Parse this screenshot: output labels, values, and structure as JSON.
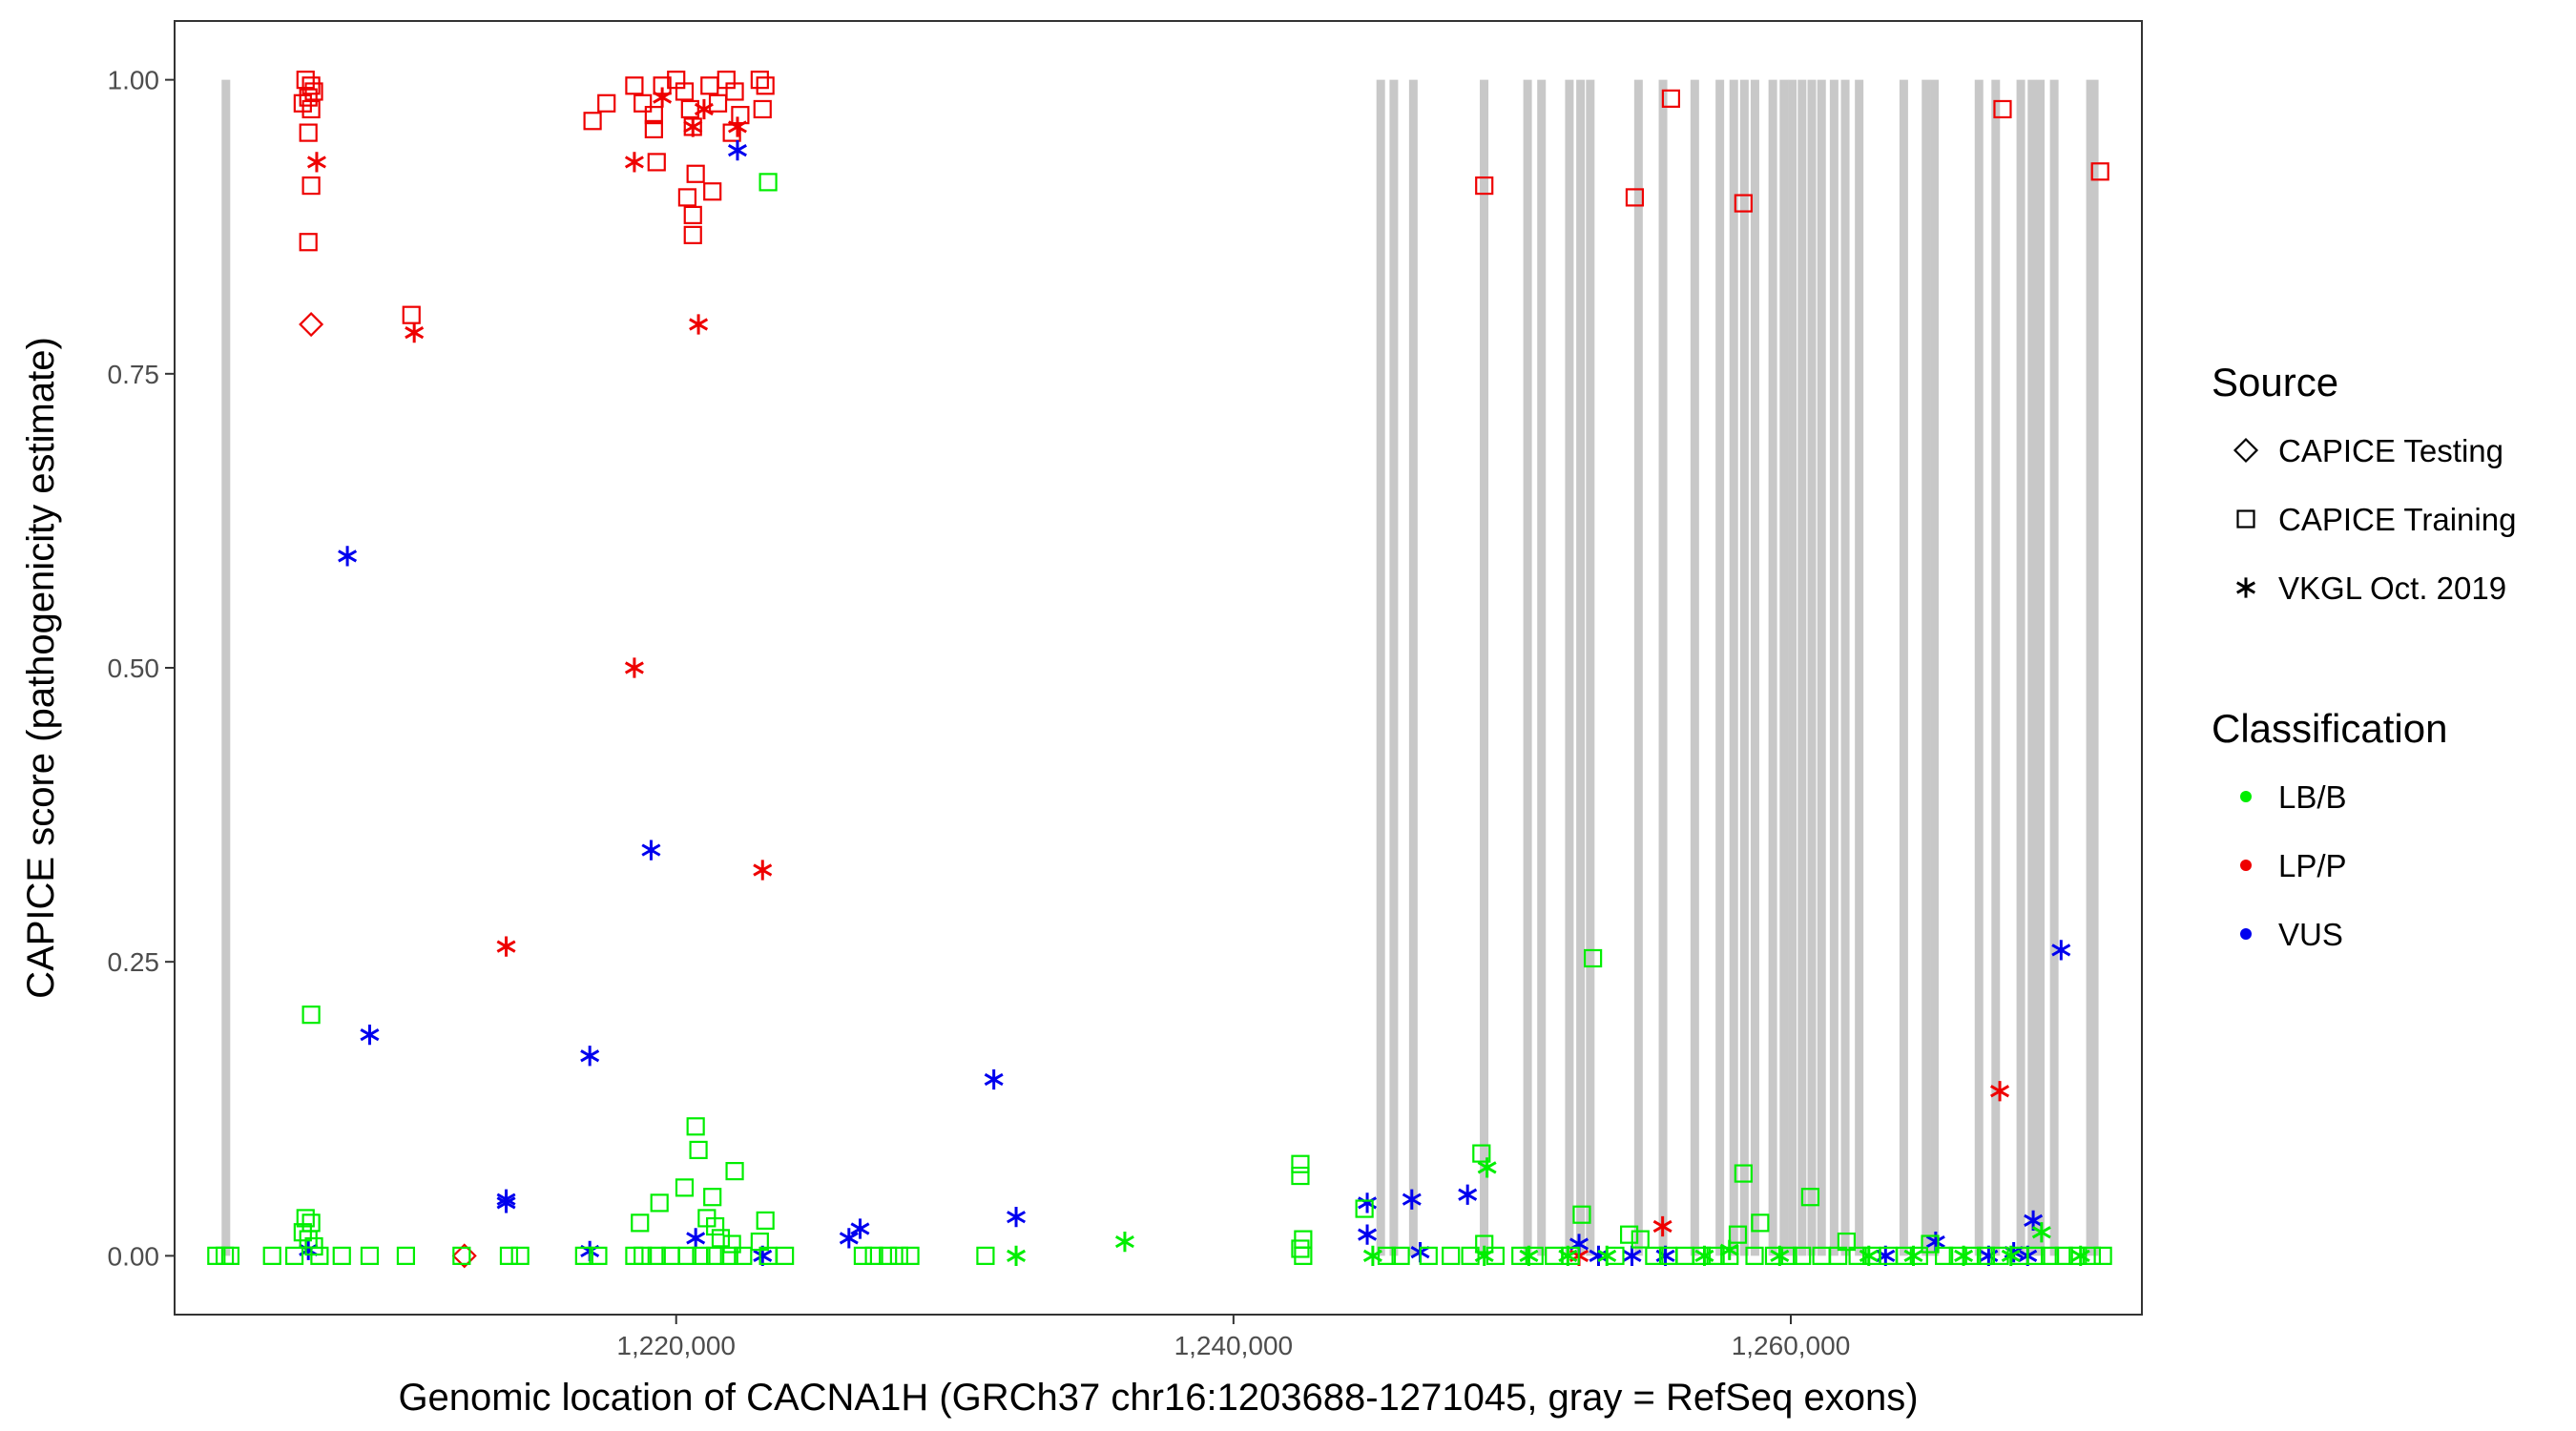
{
  "chart_data": {
    "type": "scatter",
    "xlabel": "Genomic location of CACNA1H (GRCh37 chr16:1203688-1271045, gray = RefSeq exons)",
    "ylabel": "CAPICE score (pathogenicity estimate)",
    "xlim": [
      1202000,
      1272600
    ],
    "ylim": [
      -0.05,
      1.05
    ],
    "x_ticks": [
      1220000,
      1240000,
      1260000
    ],
    "x_tick_labels": [
      "1,220,000",
      "1,240,000",
      "1,260,000"
    ],
    "y_ticks": [
      0,
      0.25,
      0.5,
      0.75,
      1.0
    ],
    "y_tick_labels": [
      "0.00",
      "0.25",
      "0.50",
      "0.75",
      "1.00"
    ],
    "grid": false,
    "legend_position": "right",
    "colors": {
      "LB/B": "#00ee00",
      "LP/P": "#ee0000",
      "VUS": "#0000ee",
      "exon": "#c8c8c8"
    },
    "exons": [
      [
        1203688,
        1203880
      ],
      [
        1245130,
        1245260
      ],
      [
        1245600,
        1245740
      ],
      [
        1246300,
        1246420
      ],
      [
        1248840,
        1248980
      ],
      [
        1250400,
        1250600
      ],
      [
        1250900,
        1251040
      ],
      [
        1251900,
        1252100
      ],
      [
        1252300,
        1252460
      ],
      [
        1252650,
        1252820
      ],
      [
        1254380,
        1254600
      ],
      [
        1255260,
        1255420
      ],
      [
        1256400,
        1256560
      ],
      [
        1257300,
        1257460
      ],
      [
        1257800,
        1257940
      ],
      [
        1258180,
        1258320
      ],
      [
        1258560,
        1258700
      ],
      [
        1259200,
        1259360
      ],
      [
        1259600,
        1259740
      ],
      [
        1259900,
        1260050
      ],
      [
        1260250,
        1260400
      ],
      [
        1260600,
        1260760
      ],
      [
        1260950,
        1261100
      ],
      [
        1261400,
        1261540
      ],
      [
        1261800,
        1261940
      ],
      [
        1262300,
        1262440
      ],
      [
        1263900,
        1264060
      ],
      [
        1264700,
        1264860
      ],
      [
        1265000,
        1265140
      ],
      [
        1266600,
        1266740
      ],
      [
        1267200,
        1267360
      ],
      [
        1268100,
        1268260
      ],
      [
        1268500,
        1268660
      ],
      [
        1268800,
        1268960
      ],
      [
        1269300,
        1269440
      ],
      [
        1270600,
        1271045
      ]
    ],
    "legends": [
      {
        "title": "Source",
        "items": [
          {
            "label": "CAPICE Testing",
            "shape": "diamond"
          },
          {
            "label": "CAPICE Training",
            "shape": "square"
          },
          {
            "label": "VKGL Oct. 2019",
            "shape": "star"
          }
        ]
      },
      {
        "title": "Classification",
        "items": [
          {
            "label": "LB/B",
            "color": "#00ee00"
          },
          {
            "label": "LP/P",
            "color": "#ee0000"
          },
          {
            "label": "VUS",
            "color": "#0000ee"
          }
        ]
      }
    ],
    "series": [
      {
        "name": "LP/P - CAPICE Training",
        "class": "LP/P",
        "source": "CAPICE Training",
        "points": [
          [
            1206700,
            1.0
          ],
          [
            1206900,
            0.995
          ],
          [
            1207000,
            0.99
          ],
          [
            1206800,
            0.985
          ],
          [
            1206600,
            0.98
          ],
          [
            1206900,
            0.975
          ],
          [
            1206800,
            0.955
          ],
          [
            1206900,
            0.91
          ],
          [
            1206800,
            0.862
          ],
          [
            1210500,
            0.8
          ],
          [
            1217000,
            0.965
          ],
          [
            1217500,
            0.98
          ],
          [
            1218500,
            0.995
          ],
          [
            1218800,
            0.98
          ],
          [
            1219200,
            0.97
          ],
          [
            1219500,
            0.995
          ],
          [
            1219200,
            0.958
          ],
          [
            1219300,
            0.93
          ],
          [
            1220000,
            1.0
          ],
          [
            1220300,
            0.99
          ],
          [
            1220500,
            0.975
          ],
          [
            1220600,
            0.96
          ],
          [
            1220400,
            0.9
          ],
          [
            1220600,
            0.885
          ],
          [
            1220700,
            0.92
          ],
          [
            1220600,
            0.868
          ],
          [
            1221200,
            0.995
          ],
          [
            1221500,
            0.98
          ],
          [
            1221800,
            1.0
          ],
          [
            1222100,
            0.99
          ],
          [
            1222300,
            0.97
          ],
          [
            1222000,
            0.955
          ],
          [
            1221300,
            0.905
          ],
          [
            1223000,
            1.0
          ],
          [
            1223200,
            0.995
          ],
          [
            1223100,
            0.975
          ],
          [
            1249000,
            0.91
          ],
          [
            1254400,
            0.9
          ],
          [
            1255700,
            0.984
          ],
          [
            1258300,
            0.895
          ],
          [
            1267600,
            0.975
          ],
          [
            1271100,
            0.922
          ]
        ]
      },
      {
        "name": "LP/P - VKGL Oct. 2019",
        "class": "LP/P",
        "source": "VKGL Oct. 2019",
        "points": [
          [
            1207100,
            0.93
          ],
          [
            1210600,
            0.785
          ],
          [
            1213900,
            0.263
          ],
          [
            1218500,
            0.93
          ],
          [
            1218500,
            0.5
          ],
          [
            1219500,
            0.985
          ],
          [
            1220600,
            0.96
          ],
          [
            1220800,
            0.792
          ],
          [
            1221000,
            0.975
          ],
          [
            1222200,
            0.96
          ],
          [
            1223100,
            0.328
          ],
          [
            1252400,
            0.0
          ],
          [
            1255400,
            0.025
          ],
          [
            1267500,
            0.14
          ]
        ]
      },
      {
        "name": "LP/P - CAPICE Testing",
        "class": "LP/P",
        "source": "CAPICE Testing",
        "points": [
          [
            1206900,
            0.792
          ],
          [
            1212400,
            0.0
          ]
        ]
      },
      {
        "name": "VUS - VKGL Oct. 2019",
        "class": "VUS",
        "source": "VKGL Oct. 2019",
        "points": [
          [
            1208200,
            0.595
          ],
          [
            1209000,
            0.188
          ],
          [
            1206800,
            0.005
          ],
          [
            1213900,
            0.048
          ],
          [
            1213900,
            0.045
          ],
          [
            1216900,
            0.17
          ],
          [
            1216900,
            0.004
          ],
          [
            1219100,
            0.345
          ],
          [
            1222200,
            0.94
          ],
          [
            1220700,
            0.015
          ],
          [
            1223100,
            0.0
          ],
          [
            1226200,
            0.015
          ],
          [
            1226600,
            0.023
          ],
          [
            1231400,
            0.15
          ],
          [
            1232200,
            0.033
          ],
          [
            1244800,
            0.045
          ],
          [
            1244800,
            0.018
          ],
          [
            1246400,
            0.048
          ],
          [
            1246700,
            0.003
          ],
          [
            1248400,
            0.052
          ],
          [
            1252400,
            0.01
          ],
          [
            1253100,
            0.0
          ],
          [
            1254300,
            0.0
          ],
          [
            1255500,
            0.0
          ],
          [
            1263400,
            0.0
          ],
          [
            1265200,
            0.012
          ],
          [
            1267100,
            0.0
          ],
          [
            1268000,
            0.003
          ],
          [
            1268500,
            0.0
          ],
          [
            1268700,
            0.03
          ],
          [
            1269700,
            0.26
          ]
        ]
      },
      {
        "name": "LB/B - CAPICE Training",
        "class": "LB/B",
        "source": "CAPICE Training",
        "points": [
          [
            1203500,
            0.0
          ],
          [
            1203800,
            0.0
          ],
          [
            1204000,
            0.0
          ],
          [
            1206900,
            0.205
          ],
          [
            1206700,
            0.032
          ],
          [
            1206900,
            0.028
          ],
          [
            1206600,
            0.02
          ],
          [
            1206800,
            0.014
          ],
          [
            1207000,
            0.008
          ],
          [
            1205500,
            0.0
          ],
          [
            1206300,
            0.0
          ],
          [
            1207200,
            0.0
          ],
          [
            1208000,
            0.0
          ],
          [
            1209000,
            0.0
          ],
          [
            1210300,
            0.0
          ],
          [
            1212300,
            0.0
          ],
          [
            1214000,
            0.0
          ],
          [
            1214400,
            0.0
          ],
          [
            1216700,
            0.0
          ],
          [
            1217200,
            0.0
          ],
          [
            1218500,
            0.0
          ],
          [
            1218800,
            0.0
          ],
          [
            1219300,
            0.0
          ],
          [
            1219800,
            0.0
          ],
          [
            1220400,
            0.0
          ],
          [
            1220900,
            0.0
          ],
          [
            1221400,
            0.0
          ],
          [
            1221900,
            0.0
          ],
          [
            1222400,
            0.0
          ],
          [
            1223300,
            0.0
          ],
          [
            1223900,
            0.0
          ],
          [
            1218700,
            0.028
          ],
          [
            1219400,
            0.045
          ],
          [
            1220300,
            0.058
          ],
          [
            1220700,
            0.11
          ],
          [
            1220800,
            0.09
          ],
          [
            1221100,
            0.032
          ],
          [
            1221300,
            0.05
          ],
          [
            1221400,
            0.025
          ],
          [
            1221600,
            0.015
          ],
          [
            1222100,
            0.072
          ],
          [
            1222000,
            0.01
          ],
          [
            1223200,
            0.03
          ],
          [
            1223000,
            0.012
          ],
          [
            1223300,
            0.913
          ],
          [
            1226700,
            0.0
          ],
          [
            1227100,
            0.0
          ],
          [
            1227600,
            0.0
          ],
          [
            1228000,
            0.0
          ],
          [
            1228400,
            0.0
          ],
          [
            1231100,
            0.0
          ],
          [
            1242400,
            0.078
          ],
          [
            1242400,
            0.068
          ],
          [
            1242500,
            0.014
          ],
          [
            1242400,
            0.006
          ],
          [
            1242500,
            0.0
          ],
          [
            1244700,
            0.04
          ],
          [
            1245500,
            0.0
          ],
          [
            1246000,
            0.0
          ],
          [
            1247000,
            0.0
          ],
          [
            1247800,
            0.0
          ],
          [
            1248500,
            0.0
          ],
          [
            1248900,
            0.087
          ],
          [
            1249000,
            0.01
          ],
          [
            1249400,
            0.0
          ],
          [
            1250300,
            0.0
          ],
          [
            1250800,
            0.0
          ],
          [
            1251500,
            0.0
          ],
          [
            1252100,
            0.0
          ],
          [
            1252500,
            0.035
          ],
          [
            1252900,
            0.253
          ],
          [
            1253700,
            0.0
          ],
          [
            1254200,
            0.018
          ],
          [
            1254600,
            0.014
          ],
          [
            1255100,
            0.0
          ],
          [
            1255600,
            0.0
          ],
          [
            1256200,
            0.0
          ],
          [
            1256800,
            0.0
          ],
          [
            1257300,
            0.0
          ],
          [
            1257800,
            0.0
          ],
          [
            1258100,
            0.018
          ],
          [
            1258300,
            0.07
          ],
          [
            1258700,
            0.0
          ],
          [
            1258900,
            0.028
          ],
          [
            1259400,
            0.0
          ],
          [
            1259900,
            0.0
          ],
          [
            1260400,
            0.0
          ],
          [
            1260700,
            0.05
          ],
          [
            1261100,
            0.0
          ],
          [
            1261700,
            0.0
          ],
          [
            1262000,
            0.012
          ],
          [
            1262400,
            0.0
          ],
          [
            1262900,
            0.0
          ],
          [
            1263500,
            0.0
          ],
          [
            1264100,
            0.0
          ],
          [
            1264600,
            0.0
          ],
          [
            1265000,
            0.01
          ],
          [
            1265500,
            0.0
          ],
          [
            1266000,
            0.0
          ],
          [
            1266500,
            0.0
          ],
          [
            1267000,
            0.0
          ],
          [
            1267500,
            0.0
          ],
          [
            1268200,
            0.0
          ],
          [
            1268800,
            0.0
          ],
          [
            1269300,
            0.0
          ],
          [
            1269800,
            0.0
          ],
          [
            1270300,
            0.0
          ],
          [
            1270800,
            0.0
          ],
          [
            1271200,
            0.0
          ]
        ]
      },
      {
        "name": "LB/B - VKGL Oct. 2019",
        "class": "LB/B",
        "source": "VKGL Oct. 2019",
        "points": [
          [
            1232200,
            0.0
          ],
          [
            1236100,
            0.012
          ],
          [
            1245000,
            0.0
          ],
          [
            1249100,
            0.075
          ],
          [
            1249000,
            0.0
          ],
          [
            1250600,
            0.0
          ],
          [
            1252000,
            0.0
          ],
          [
            1253400,
            0.0
          ],
          [
            1256900,
            0.0
          ],
          [
            1257800,
            0.005
          ],
          [
            1259600,
            0.0
          ],
          [
            1262800,
            0.0
          ],
          [
            1264400,
            0.0
          ],
          [
            1266200,
            0.0
          ],
          [
            1267900,
            0.0
          ],
          [
            1269000,
            0.02
          ],
          [
            1270400,
            0.0
          ]
        ]
      }
    ]
  }
}
